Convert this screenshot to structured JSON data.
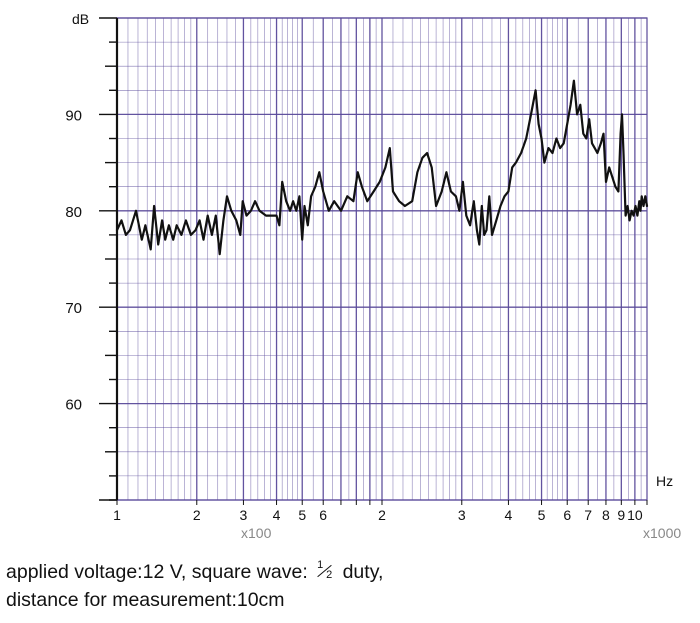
{
  "chart_data": {
    "type": "line",
    "ylabel": "dB",
    "xlabel": "Hz",
    "x_scale": "log",
    "y_ticks": [
      "60",
      "70",
      "80",
      "90"
    ],
    "ylim": [
      50,
      100
    ],
    "xlim": [
      100,
      10000
    ],
    "x_ticks": [
      {
        "x": 100,
        "label": "1"
      },
      {
        "x": 200,
        "label": "2"
      },
      {
        "x": 300,
        "label": "3"
      },
      {
        "x": 400,
        "label": "4"
      },
      {
        "x": 500,
        "label": "5"
      },
      {
        "x": 600,
        "label": "6"
      },
      {
        "x": 1000,
        "label": "2"
      },
      {
        "x": 2000,
        "label": "3"
      },
      {
        "x": 3000,
        "label": "4"
      },
      {
        "x": 4000,
        "label": "5"
      },
      {
        "x": 5000,
        "label": "6"
      },
      {
        "x": 6000,
        "label": "7"
      },
      {
        "x": 7000,
        "label": "8"
      },
      {
        "x": 8000,
        "label": "9"
      },
      {
        "x": 9000,
        "label": "10"
      }
    ],
    "x_multipliers": [
      "x100",
      "x1000"
    ],
    "grid": true,
    "series": [
      {
        "values": [
          [
            100,
            78
          ],
          [
            104,
            79
          ],
          [
            108,
            77.5
          ],
          [
            112,
            78
          ],
          [
            118,
            80
          ],
          [
            124,
            77
          ],
          [
            128,
            78.5
          ],
          [
            134,
            76
          ],
          [
            138,
            80.5
          ],
          [
            143,
            76.5
          ],
          [
            148,
            79
          ],
          [
            152,
            77
          ],
          [
            157,
            78.5
          ],
          [
            163,
            77
          ],
          [
            168,
            78.5
          ],
          [
            175,
            77.5
          ],
          [
            182,
            79
          ],
          [
            190,
            77.5
          ],
          [
            198,
            78
          ],
          [
            205,
            79
          ],
          [
            212,
            77
          ],
          [
            220,
            79.5
          ],
          [
            228,
            77.5
          ],
          [
            236,
            79.5
          ],
          [
            244,
            75.5
          ],
          [
            252,
            79
          ],
          [
            260,
            81.5
          ],
          [
            270,
            80
          ],
          [
            282,
            79
          ],
          [
            292,
            77.5
          ],
          [
            298,
            81
          ],
          [
            308,
            79.5
          ],
          [
            320,
            80
          ],
          [
            332,
            81
          ],
          [
            345,
            80
          ],
          [
            365,
            79.5
          ],
          [
            400,
            79.5
          ],
          [
            410,
            78.5
          ],
          [
            420,
            83
          ],
          [
            435,
            81
          ],
          [
            450,
            80
          ],
          [
            462,
            81
          ],
          [
            475,
            80
          ],
          [
            488,
            81.5
          ],
          [
            500,
            77
          ],
          [
            510,
            80.5
          ],
          [
            525,
            78.5
          ],
          [
            540,
            81.5
          ],
          [
            560,
            82.5
          ],
          [
            580,
            84
          ],
          [
            600,
            82
          ],
          [
            630,
            80
          ],
          [
            660,
            81
          ],
          [
            700,
            80
          ],
          [
            740,
            81.5
          ],
          [
            780,
            81
          ],
          [
            810,
            84
          ],
          [
            840,
            82.5
          ],
          [
            880,
            81
          ],
          [
            930,
            82
          ],
          [
            980,
            83
          ],
          [
            1030,
            84.5
          ],
          [
            1070,
            86.5
          ],
          [
            1100,
            82
          ],
          [
            1160,
            81
          ],
          [
            1220,
            80.5
          ],
          [
            1300,
            81
          ],
          [
            1360,
            84
          ],
          [
            1420,
            85.5
          ],
          [
            1480,
            86
          ],
          [
            1540,
            84.5
          ],
          [
            1600,
            80.5
          ],
          [
            1680,
            82
          ],
          [
            1750,
            84
          ],
          [
            1820,
            82
          ],
          [
            1900,
            81.5
          ],
          [
            1960,
            80
          ],
          [
            2020,
            83
          ],
          [
            2080,
            79.5
          ],
          [
            2150,
            78.5
          ],
          [
            2220,
            81
          ],
          [
            2280,
            78
          ],
          [
            2330,
            76.5
          ],
          [
            2380,
            80.5
          ],
          [
            2430,
            77.5
          ],
          [
            2480,
            78
          ],
          [
            2540,
            81.5
          ],
          [
            2600,
            77.5
          ],
          [
            2700,
            79
          ],
          [
            2800,
            80.5
          ],
          [
            2900,
            81.5
          ],
          [
            3000,
            82
          ],
          [
            3100,
            84.5
          ],
          [
            3200,
            85
          ],
          [
            3350,
            86
          ],
          [
            3500,
            87.5
          ],
          [
            3650,
            90
          ],
          [
            3800,
            92.5
          ],
          [
            3900,
            89
          ],
          [
            4000,
            87.5
          ],
          [
            4100,
            85
          ],
          [
            4250,
            86.5
          ],
          [
            4400,
            86
          ],
          [
            4550,
            87.5
          ],
          [
            4700,
            86.5
          ],
          [
            4850,
            87
          ],
          [
            5000,
            89
          ],
          [
            5150,
            91
          ],
          [
            5300,
            93.5
          ],
          [
            5450,
            90
          ],
          [
            5600,
            91
          ],
          [
            5750,
            88
          ],
          [
            5900,
            87.5
          ],
          [
            6050,
            89.5
          ],
          [
            6200,
            87
          ],
          [
            6350,
            86.5
          ],
          [
            6500,
            86
          ],
          [
            6700,
            87
          ],
          [
            6850,
            88
          ],
          [
            7000,
            83
          ],
          [
            7200,
            84.5
          ],
          [
            7400,
            83.5
          ],
          [
            7600,
            82.5
          ],
          [
            7800,
            82
          ],
          [
            7950,
            88
          ],
          [
            8050,
            90
          ],
          [
            8150,
            86
          ],
          [
            8300,
            79.5
          ],
          [
            8450,
            80.5
          ],
          [
            8600,
            79
          ],
          [
            8750,
            80
          ],
          [
            8900,
            79.5
          ],
          [
            9050,
            80.5
          ],
          [
            9200,
            79.5
          ],
          [
            9350,
            81
          ],
          [
            9450,
            80
          ],
          [
            9550,
            81.5
          ],
          [
            9700,
            80.5
          ],
          [
            9850,
            81.5
          ],
          [
            10000,
            80.5
          ]
        ]
      }
    ]
  },
  "caption": {
    "line1_prefix": "applied voltage:12 V, square wave:",
    "fraction_numerator": "1",
    "fraction_denominator": "2",
    "line1_suffix": " duty,",
    "line2": "distance for measurement:10cm"
  }
}
